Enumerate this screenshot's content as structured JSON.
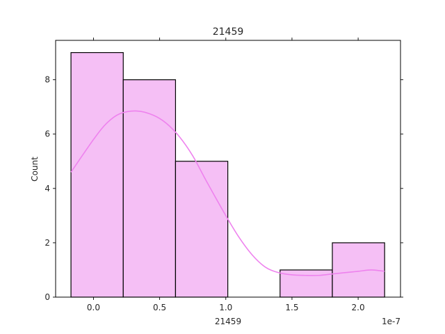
{
  "chart_data": {
    "type": "histogram",
    "title": "21459",
    "xlabel": "21459",
    "ylabel": "Count",
    "x_offset_label": "1e-7",
    "x_scale": 1e-07,
    "xlim": [
      -0.286,
      2.32
    ],
    "ylim": [
      0,
      9.45
    ],
    "x_ticks": [
      0.0,
      0.5,
      1.0,
      1.5,
      2.0
    ],
    "x_tick_labels": [
      "0.0",
      "0.5",
      "1.0",
      "1.5",
      "2.0"
    ],
    "y_ticks": [
      0,
      2,
      4,
      6,
      8
    ],
    "y_tick_labels": [
      "0",
      "2",
      "4",
      "6",
      "8"
    ],
    "bins": [
      {
        "start": -0.17,
        "end": 0.225,
        "count": 9
      },
      {
        "start": 0.225,
        "end": 0.62,
        "count": 8
      },
      {
        "start": 0.62,
        "end": 1.015,
        "count": 5
      },
      {
        "start": 1.015,
        "end": 1.41,
        "count": 0
      },
      {
        "start": 1.41,
        "end": 1.805,
        "count": 1
      },
      {
        "start": 1.805,
        "end": 2.2,
        "count": 2
      }
    ],
    "kde": {
      "x": [
        -0.17,
        0.0,
        0.1,
        0.2,
        0.33,
        0.45,
        0.55,
        0.65,
        0.75,
        0.85,
        1.0,
        1.1,
        1.2,
        1.3,
        1.4,
        1.5,
        1.6,
        1.7,
        1.8,
        1.9,
        2.0,
        2.1,
        2.2
      ],
      "y": [
        4.6,
        5.8,
        6.4,
        6.75,
        6.85,
        6.7,
        6.4,
        5.9,
        5.2,
        4.3,
        3.0,
        2.2,
        1.55,
        1.1,
        0.9,
        0.82,
        0.8,
        0.8,
        0.85,
        0.9,
        0.95,
        1.0,
        0.95
      ]
    },
    "colors": {
      "bar_fill": "#f5bff5",
      "bar_edge": "#000000",
      "kde_line": "#ee82ee"
    },
    "grid": false
  }
}
